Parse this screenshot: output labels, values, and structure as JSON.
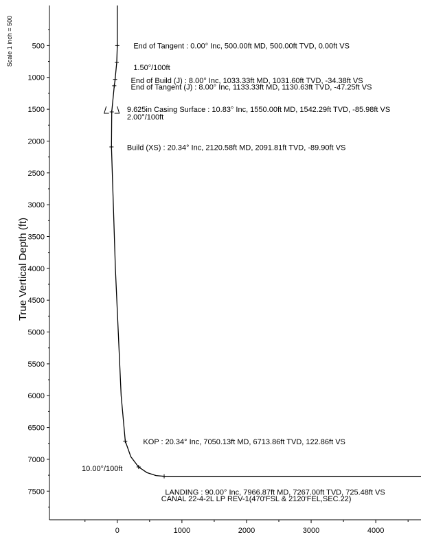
{
  "chart_data": {
    "type": "line",
    "ylabel": "True Vertical Depth (ft)",
    "scale_label": "Scale 1 inch = 500",
    "xlim": [
      -1050,
      4700
    ],
    "ylim": [
      7950,
      -130
    ],
    "x_ticks": [
      0,
      1000,
      2000,
      3000,
      4000
    ],
    "y_ticks": [
      500,
      1000,
      1500,
      2000,
      2500,
      3000,
      3500,
      4000,
      4500,
      5000,
      5500,
      6000,
      6500,
      7000,
      7500
    ],
    "grid": false,
    "series": [
      {
        "x": [
          0,
          0,
          -8,
          -34,
          -47,
          -86,
          -90,
          -30,
          60,
          123,
          210,
          330,
          460,
          600,
          725,
          4800
        ],
        "y": [
          -130,
          500,
          760,
          1032,
          1131,
          1542,
          2092,
          4000,
          6000,
          6714,
          6960,
          7120,
          7210,
          7255,
          7267,
          7267
        ]
      }
    ],
    "markers": [
      {
        "x": 0,
        "y": 500
      },
      {
        "x": -8,
        "y": 760
      },
      {
        "x": -34,
        "y": 1032
      },
      {
        "x": -47,
        "y": 1131
      },
      {
        "x": -86,
        "y": 1542
      },
      {
        "x": -90,
        "y": 2092
      },
      {
        "x": 123,
        "y": 6714
      },
      {
        "x": 330,
        "y": 7120
      },
      {
        "x": 725,
        "y": 7267
      }
    ],
    "annotations": [
      {
        "text": "End of Tangent : 0.00° Inc, 500.00ft MD, 500.00ft TVD, 0.00ft VS",
        "x": 250,
        "y": 500
      },
      {
        "text": "1.50°/100ft",
        "x": 250,
        "y": 840
      },
      {
        "text": "End of Build (J) : 8.00° Inc, 1033.33ft MD, 1031.60ft TVD, -34.38ft VS",
        "x": 210,
        "y": 1045
      },
      {
        "text": "End of Tangent (J) : 8.00° Inc, 1133.33ft MD, 1130.63ft TVD, -47.25ft VS",
        "x": 210,
        "y": 1150
      },
      {
        "text": "9.625in Casing Surface : 10.83° Inc, 1550.00ft MD, 1542.29ft TVD, -85.98ft VS",
        "x": 150,
        "y": 1500
      },
      {
        "text": "2.00°/100ft",
        "x": 150,
        "y": 1620
      },
      {
        "text": "Build (XS) : 20.34° Inc, 2120.58ft MD, 2091.81ft TVD, -89.90ft VS",
        "x": 150,
        "y": 2100
      },
      {
        "text": "KOP : 20.34° Inc, 7050.13ft MD, 6713.86ft TVD, 122.86ft VS",
        "x": 400,
        "y": 6720
      },
      {
        "text": "10.00°/100ft",
        "x": -550,
        "y": 7140
      },
      {
        "text": "LANDING : 90.00° Inc, 7966.87ft MD, 7267.00ft TVD, 725.48ft VS",
        "x": 740,
        "y": 7515
      },
      {
        "text": "CANAL 22-4-2L LP REV-1(470'FSL & 2120'FEL,SEC.22)",
        "x": 680,
        "y": 7615,
        "color": "#1a2bd6"
      }
    ]
  }
}
